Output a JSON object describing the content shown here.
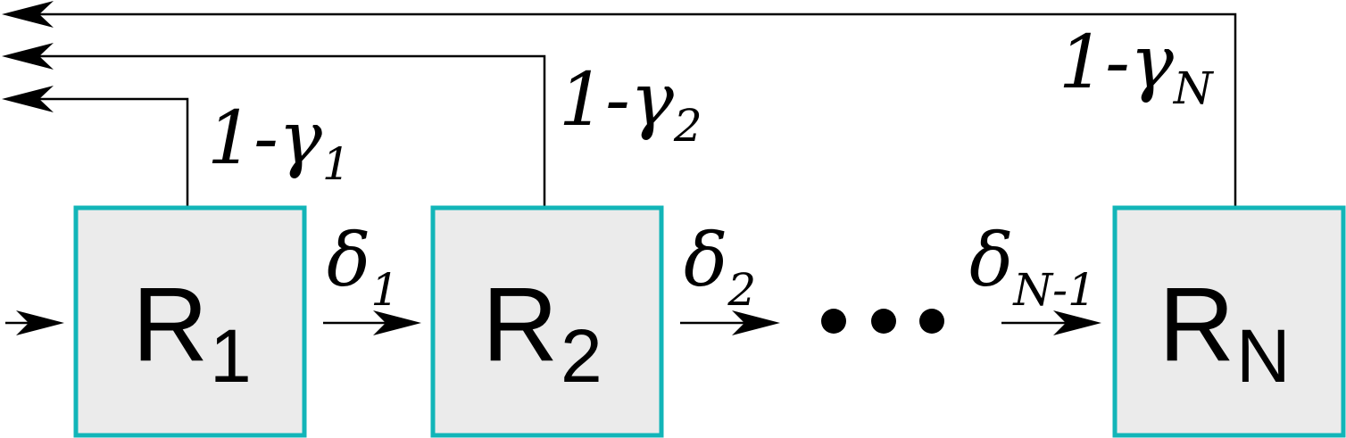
{
  "nodes": [
    {
      "letter": "R",
      "subscript": "1"
    },
    {
      "letter": "R",
      "subscript": "2"
    },
    {
      "letter": "R",
      "subscript": "N"
    }
  ],
  "transitions": [
    {
      "symbol": "δ",
      "subscript": "1"
    },
    {
      "symbol": "δ",
      "subscript": "2"
    },
    {
      "symbol": "δ",
      "subscript": "N-1"
    }
  ],
  "feedback": [
    {
      "prefix": "1-",
      "symbol": "γ",
      "subscript": "1"
    },
    {
      "prefix": "1-",
      "symbol": "γ",
      "subscript": "2"
    },
    {
      "prefix": "1-",
      "symbol": "γ",
      "subscript": "N"
    }
  ],
  "ellipsis_dots": 3
}
